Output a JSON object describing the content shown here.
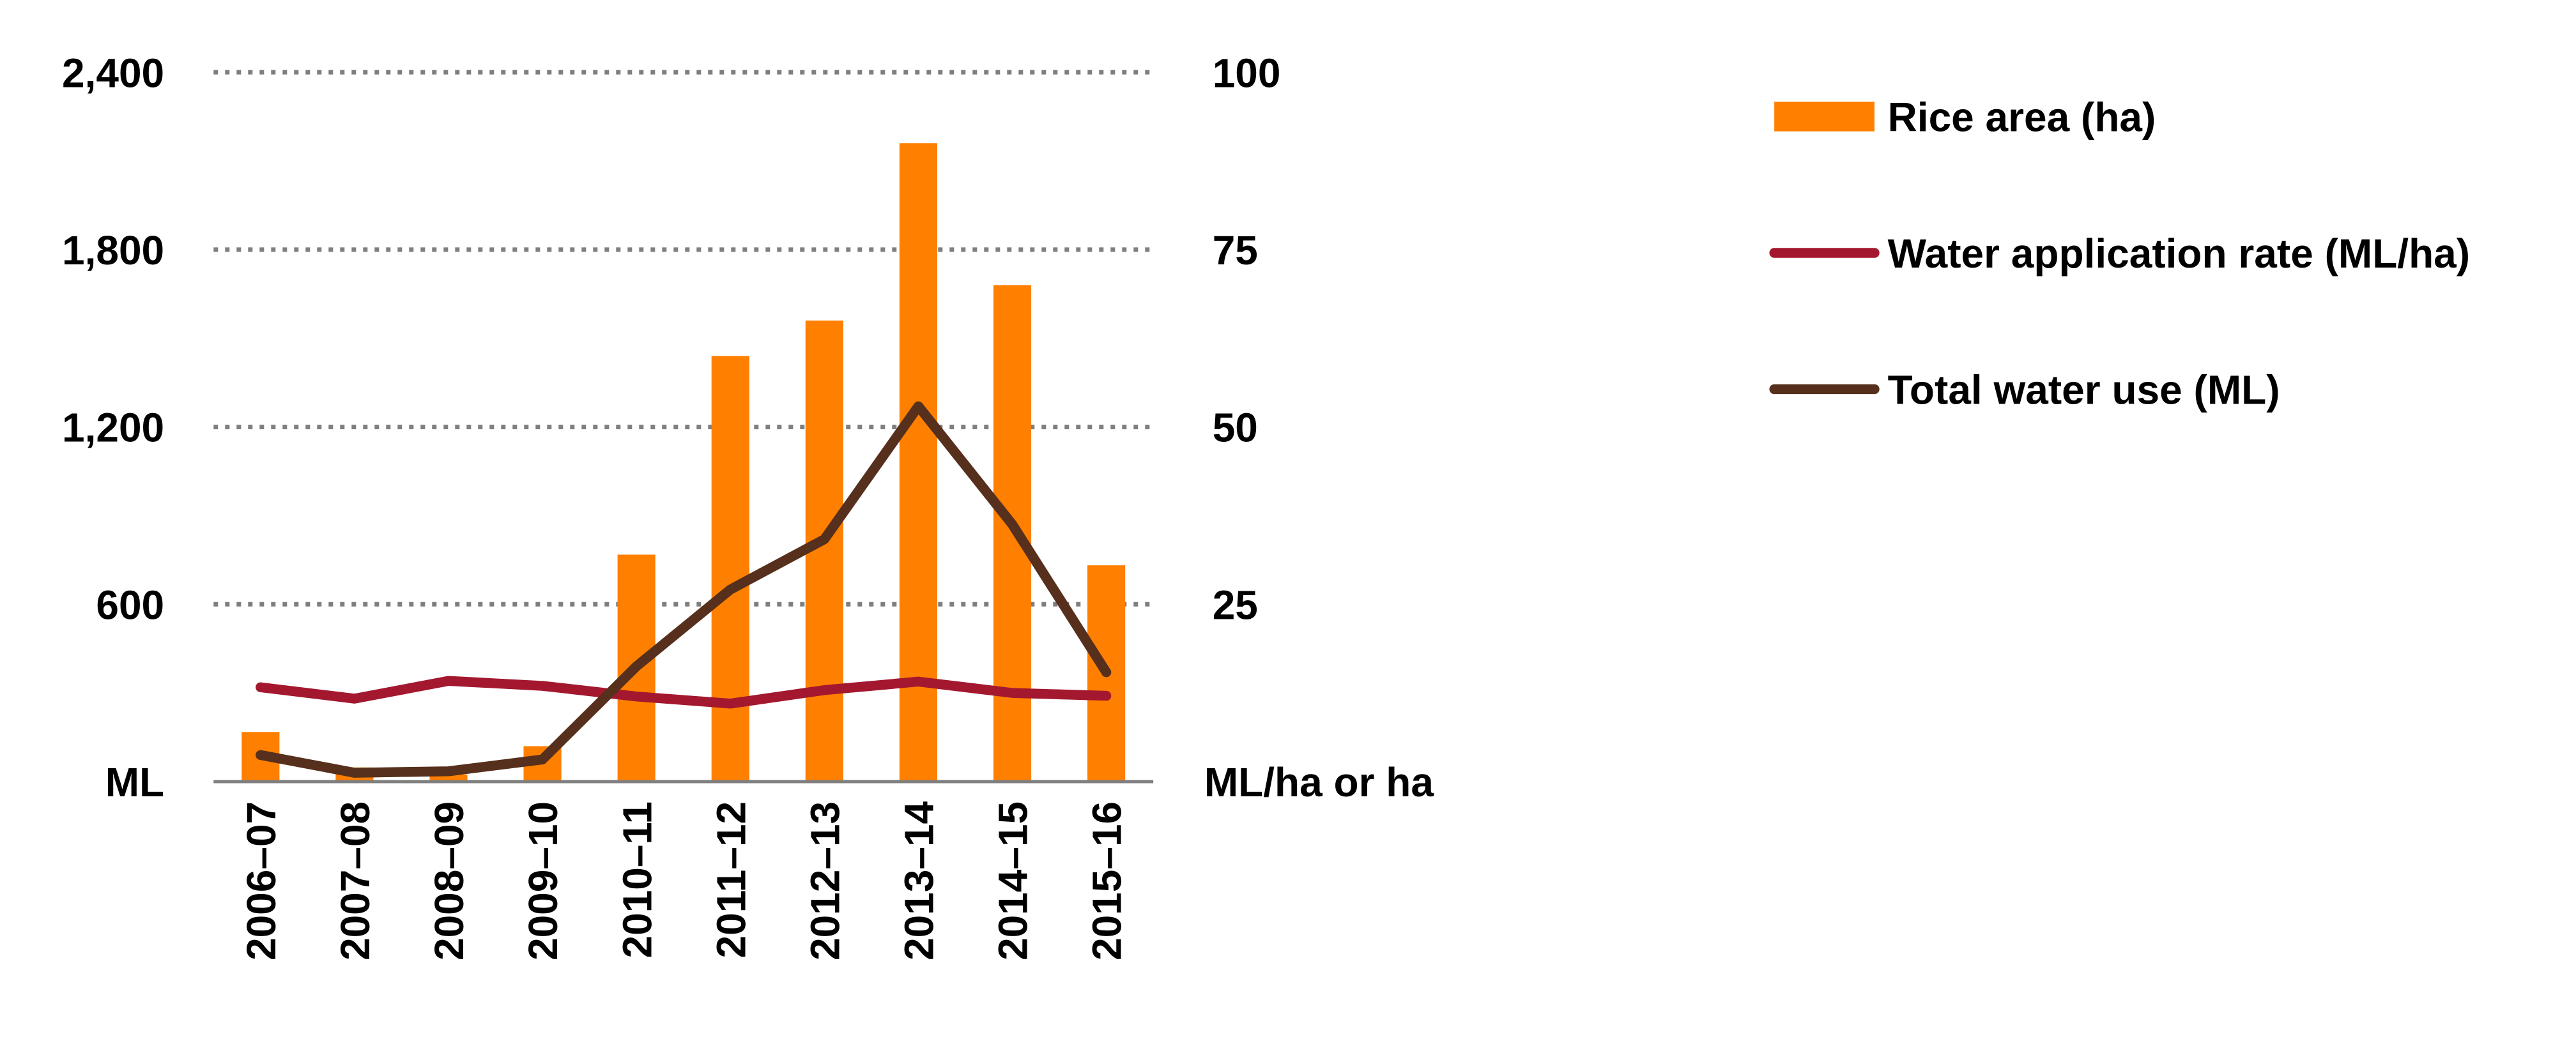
{
  "chart_data": {
    "type": "bar",
    "categories": [
      "2006–07",
      "2007–08",
      "2008–09",
      "2009–10",
      "2010–11",
      "2011–12",
      "2012–13",
      "2013–14",
      "2014–15",
      "2015–16"
    ],
    "y_left": {
      "ticks": [
        2400,
        1800,
        1200,
        600
      ],
      "tick_labels": [
        "2,400",
        "1,800",
        "1,200",
        "600"
      ],
      "unit_label": "ML",
      "range": [
        0,
        2400
      ]
    },
    "y_right": {
      "ticks": [
        100,
        75,
        50,
        25
      ],
      "tick_labels": [
        "100",
        "75",
        "50",
        "25"
      ],
      "unit_label": "ML/ha or ha",
      "range": [
        0,
        100
      ]
    },
    "grid": true,
    "legend_position": "right",
    "series": [
      {
        "name": "Rice area (ha)",
        "kind": "bar",
        "axis": "right",
        "color": "#ff7f00",
        "values": [
          7,
          2,
          1,
          5,
          32,
          60,
          65,
          90,
          70,
          30.5
        ]
      },
      {
        "name": "Water application rate (ML/ha)",
        "kind": "line",
        "axis": "right",
        "color": "#a3182f",
        "values": [
          13.3,
          11.7,
          14.2,
          13.5,
          12.0,
          11.0,
          12.9,
          14.1,
          12.5,
          12.1
        ]
      },
      {
        "name": "Total water use (ML)",
        "kind": "line",
        "axis": "left",
        "color": "#56301c",
        "values": [
          90,
          30,
          35,
          75,
          390,
          650,
          820,
          1270,
          870,
          370
        ]
      }
    ]
  }
}
